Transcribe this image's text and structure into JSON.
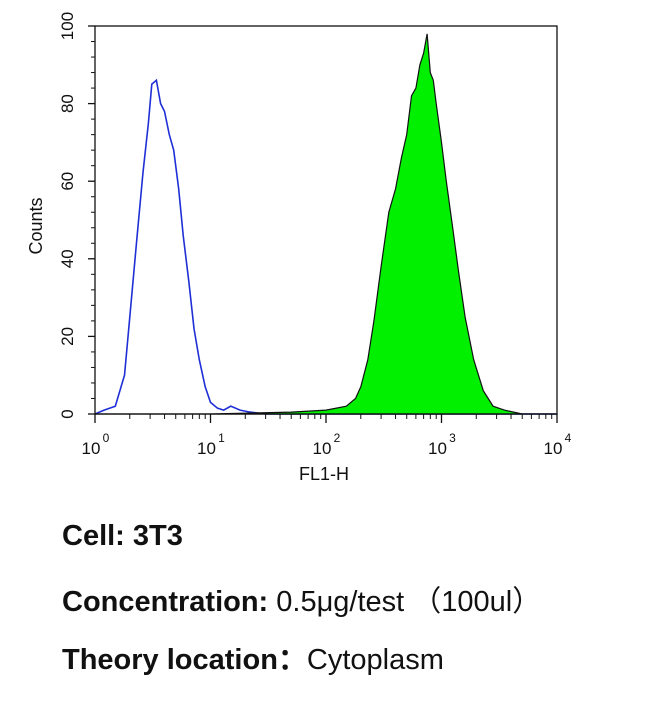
{
  "chart_data": {
    "type": "area",
    "xlabel": "FL1-H",
    "ylabel": "Counts",
    "x_scale": "log",
    "xlim": [
      1,
      10000
    ],
    "ylim": [
      0,
      100
    ],
    "x_ticks": [
      {
        "value": 1,
        "base": "10",
        "exp": "0"
      },
      {
        "value": 10,
        "base": "10",
        "exp": "1"
      },
      {
        "value": 100,
        "base": "10",
        "exp": "2"
      },
      {
        "value": 1000,
        "base": "10",
        "exp": "3"
      },
      {
        "value": 10000,
        "base": "10",
        "exp": "4"
      }
    ],
    "y_ticks": [
      "0",
      "20",
      "40",
      "60",
      "80",
      "100"
    ],
    "series": [
      {
        "color": "#1f2fd6",
        "style": "outline",
        "x": [
          1,
          1.2,
          1.5,
          1.8,
          2.0,
          2.3,
          2.6,
          2.9,
          3.1,
          3.4,
          3.7,
          4.0,
          4.4,
          4.8,
          5.3,
          5.8,
          6.5,
          7.2,
          8.0,
          9.0,
          10.0,
          11.5,
          13,
          15,
          18,
          22,
          30,
          50,
          100,
          1000,
          10000
        ],
        "y": [
          0,
          1,
          2,
          10,
          25,
          45,
          62,
          75,
          85,
          86,
          80,
          78,
          72,
          68,
          58,
          46,
          34,
          22,
          14,
          7,
          3,
          1.5,
          1,
          2,
          1,
          0.5,
          0,
          0,
          0,
          0,
          0
        ]
      },
      {
        "color": "#00f000",
        "style": "filled",
        "x": [
          1,
          10,
          50,
          100,
          150,
          180,
          200,
          230,
          260,
          300,
          350,
          400,
          450,
          500,
          550,
          600,
          650,
          700,
          750,
          800,
          850,
          900,
          1000,
          1100,
          1250,
          1400,
          1600,
          1900,
          2300,
          2800,
          3500,
          5000,
          10000
        ],
        "y": [
          0,
          0,
          0.5,
          1,
          2,
          4,
          7,
          14,
          24,
          38,
          52,
          58,
          66,
          72,
          82,
          84,
          90,
          93,
          98,
          88,
          86,
          80,
          70,
          60,
          48,
          37,
          25,
          14,
          6,
          2,
          1,
          0,
          0
        ]
      }
    ]
  },
  "captions": {
    "cell_label": "Cell:",
    "cell_value": "3T3",
    "conc_label": "Concentration:",
    "conc_value": "0.5μg/test （100ul）",
    "loc_label": "Theory location：",
    "loc_value": "Cytoplasm"
  }
}
